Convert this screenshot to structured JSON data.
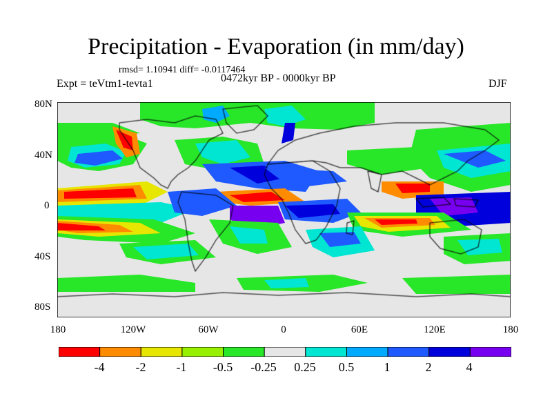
{
  "header": {
    "title": "Precipitation - Evaporation (in mm/day)",
    "stats": "rmsd= 1.10941 diff= -0.0117464",
    "period": "0472kyr BP - 0000kyr BP",
    "experiment": "Expt = teVtm1-tevta1",
    "season": "DJF"
  },
  "axes": {
    "lat_labels": [
      "80N",
      "40N",
      "0",
      "40S",
      "80S"
    ],
    "lon_labels": [
      "180",
      "120W",
      "60W",
      "0",
      "60E",
      "120E",
      "180"
    ]
  },
  "colorbar": {
    "colors": [
      "#ff0000",
      "#ff8c00",
      "#e6e600",
      "#96f000",
      "#28e628",
      "#e6e6e6",
      "#00e6d2",
      "#00aaff",
      "#1e5aff",
      "#0000dc",
      "#7800f0"
    ],
    "labels": [
      "-4",
      "-2",
      "-1",
      "-0.5",
      "-0.25",
      "0.25",
      "0.5",
      "1",
      "2",
      "4"
    ]
  }
}
